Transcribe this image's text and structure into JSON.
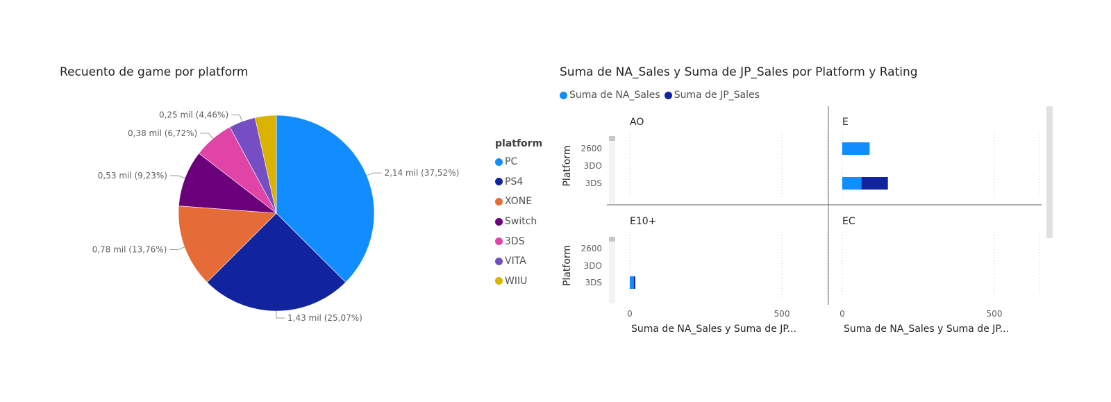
{
  "colors": {
    "PC": "#118DFF",
    "PS4": "#12239E",
    "XONE": "#E66C37",
    "Switch": "#6B007B",
    "3DS": "#E044A7",
    "VITA": "#744EC2",
    "WIIU": "#D9B300",
    "na": "#118DFF",
    "jp": "#12239E",
    "axis_text": "#605E5C",
    "title": "#252423"
  },
  "chart_data": [
    {
      "type": "pie",
      "title": "Recuento de game por platform",
      "legend_title": "platform",
      "legend_position": "right",
      "slices": [
        {
          "label": "PC",
          "value": 2.14,
          "display": "2,14 mil (37,52%)"
        },
        {
          "label": "PS4",
          "value": 1.43,
          "display": "1,43 mil (25,07%)"
        },
        {
          "label": "XONE",
          "value": 0.78,
          "display": "0,78 mil (13,76%)"
        },
        {
          "label": "Switch",
          "value": 0.53,
          "display": "0,53 mil (9,23%)"
        },
        {
          "label": "3DS",
          "value": 0.38,
          "display": "0,38 mil (6,72%)"
        },
        {
          "label": "VITA",
          "value": 0.25,
          "display": "0,25 mil (4,46%)"
        },
        {
          "label": "WIIU",
          "value": 0.2,
          "display": ""
        }
      ]
    },
    {
      "type": "bar",
      "orientation": "horizontal",
      "stacked": true,
      "title": "Suma de NA_Sales y Suma de JP_Sales por Platform y Rating",
      "legend_position": "top-left",
      "series_names": [
        "Suma de NA_Sales",
        "Suma de JP_Sales"
      ],
      "ylabel": "Platform",
      "xlabel": "Suma de NA_Sales y Suma de JP...",
      "xlim": [
        0,
        660
      ],
      "xticks": [
        "0",
        "500"
      ],
      "categories": [
        "2600",
        "3DO",
        "3DS"
      ],
      "panels": [
        {
          "rating": "AO",
          "series": [
            {
              "name": "Suma de NA_Sales",
              "values": [
                0,
                0,
                0
              ]
            },
            {
              "name": "Suma de JP_Sales",
              "values": [
                0,
                0,
                0
              ]
            }
          ]
        },
        {
          "rating": "E",
          "series": [
            {
              "name": "Suma de NA_Sales",
              "values": [
                90,
                0,
                63
              ]
            },
            {
              "name": "Suma de JP_Sales",
              "values": [
                0,
                0,
                87
              ]
            }
          ]
        },
        {
          "rating": "E10+",
          "series": [
            {
              "name": "Suma de NA_Sales",
              "values": [
                0,
                0,
                13
              ]
            },
            {
              "name": "Suma de JP_Sales",
              "values": [
                0,
                0,
                5
              ]
            }
          ]
        },
        {
          "rating": "EC",
          "series": [
            {
              "name": "Suma de NA_Sales",
              "values": [
                0,
                0,
                0
              ]
            },
            {
              "name": "Suma de JP_Sales",
              "values": [
                0,
                0,
                0
              ]
            }
          ]
        }
      ]
    }
  ]
}
